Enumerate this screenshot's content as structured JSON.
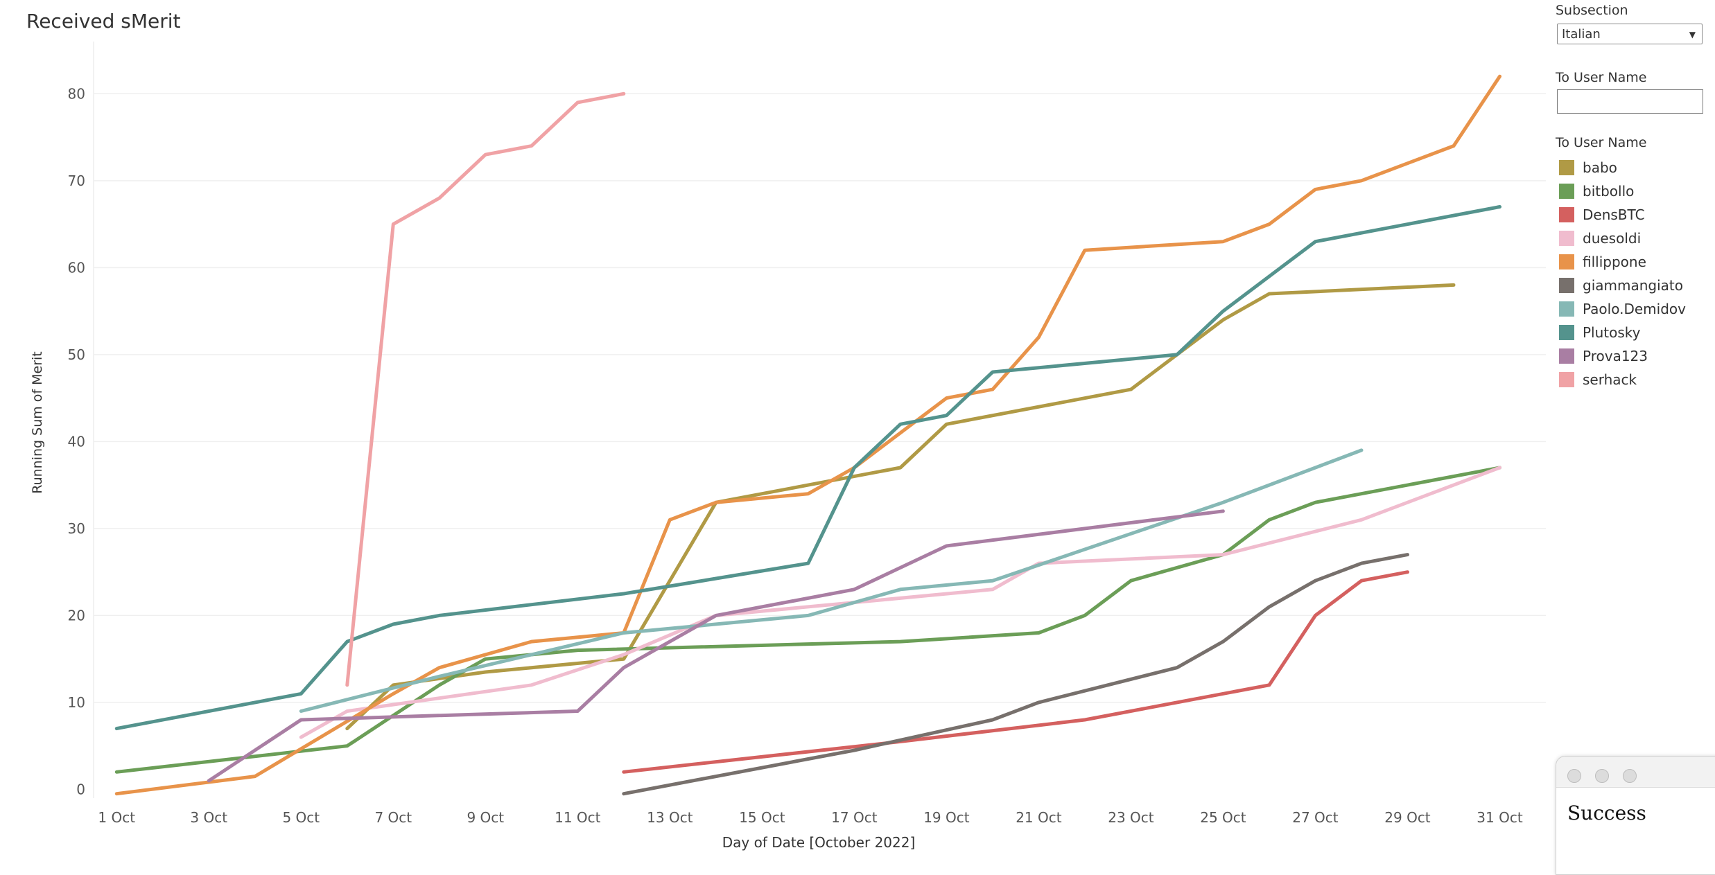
{
  "title": "Received sMerit",
  "filters": {
    "subsection_label": "Subsection",
    "subsection_value": "Italian",
    "to_user_label": "To User Name",
    "to_user_value": "",
    "legend_label": "To User Name"
  },
  "dialog": {
    "message": "Success"
  },
  "chart_data": {
    "type": "line",
    "xlabel": "Day of Date [October 2022]",
    "ylabel": "Running Sum of Merit",
    "xlim": [
      0.5,
      32
    ],
    "ylim": [
      -1,
      86
    ],
    "x_ticks": [
      "1 Oct",
      "3 Oct",
      "5 Oct",
      "7 Oct",
      "9 Oct",
      "11 Oct",
      "13 Oct",
      "15 Oct",
      "17 Oct",
      "19 Oct",
      "21 Oct",
      "23 Oct",
      "25 Oct",
      "27 Oct",
      "29 Oct",
      "31 Oct"
    ],
    "y_ticks": [
      0,
      10,
      20,
      30,
      40,
      50,
      60,
      70,
      80
    ],
    "grid": true,
    "legend_position": "right",
    "series": [
      {
        "name": "babo",
        "color": "#b09a45",
        "points": [
          [
            6,
            7
          ],
          [
            7,
            12
          ],
          [
            9,
            13.5
          ],
          [
            12,
            15
          ],
          [
            14,
            33
          ],
          [
            16,
            35
          ],
          [
            18,
            37
          ],
          [
            19,
            42
          ],
          [
            23,
            46
          ],
          [
            24,
            50
          ],
          [
            25,
            54
          ],
          [
            26,
            57
          ],
          [
            30,
            58
          ]
        ]
      },
      {
        "name": "bitbollo",
        "color": "#6b9e57",
        "points": [
          [
            1,
            2
          ],
          [
            6,
            5
          ],
          [
            8,
            12
          ],
          [
            9,
            15
          ],
          [
            11,
            16
          ],
          [
            18,
            17
          ],
          [
            21,
            18
          ],
          [
            22,
            20
          ],
          [
            23,
            24
          ],
          [
            25,
            27
          ],
          [
            26,
            31
          ],
          [
            27,
            33
          ],
          [
            31,
            37
          ]
        ]
      },
      {
        "name": "DensBTC",
        "color": "#d4605f",
        "points": [
          [
            12,
            2
          ],
          [
            18,
            5.5
          ],
          [
            22,
            8
          ],
          [
            26,
            12
          ],
          [
            27,
            20
          ],
          [
            28,
            24
          ],
          [
            29,
            25
          ]
        ]
      },
      {
        "name": "duesoldi",
        "color": "#f0bcce",
        "points": [
          [
            5,
            6
          ],
          [
            6,
            9
          ],
          [
            10,
            12
          ],
          [
            12,
            15.5
          ],
          [
            14,
            20
          ],
          [
            20,
            23
          ],
          [
            21,
            26
          ],
          [
            25,
            27
          ],
          [
            28,
            31
          ],
          [
            31,
            37
          ]
        ]
      },
      {
        "name": "fillippone",
        "color": "#e8934a",
        "points": [
          [
            1,
            -0.5
          ],
          [
            4,
            1.5
          ],
          [
            7,
            11
          ],
          [
            8,
            14
          ],
          [
            10,
            17
          ],
          [
            12,
            18
          ],
          [
            13,
            31
          ],
          [
            14,
            33
          ],
          [
            16,
            34
          ],
          [
            17,
            37
          ],
          [
            19,
            45
          ],
          [
            20,
            46
          ],
          [
            21,
            52
          ],
          [
            22,
            62
          ],
          [
            25,
            63
          ],
          [
            26,
            65
          ],
          [
            27,
            69
          ],
          [
            28,
            70
          ],
          [
            30,
            74
          ],
          [
            31,
            82
          ]
        ]
      },
      {
        "name": "giammangiato",
        "color": "#77706c",
        "points": [
          [
            12,
            -0.5
          ],
          [
            17,
            4.5
          ],
          [
            20,
            8
          ],
          [
            21,
            10
          ],
          [
            24,
            14
          ],
          [
            25,
            17
          ],
          [
            26,
            21
          ],
          [
            27,
            24
          ],
          [
            28,
            26
          ],
          [
            29,
            27
          ]
        ]
      },
      {
        "name": "Paolo.Demidov",
        "color": "#86b8b5",
        "points": [
          [
            5,
            9
          ],
          [
            8,
            13
          ],
          [
            12,
            18
          ],
          [
            16,
            20
          ],
          [
            18,
            23
          ],
          [
            20,
            24
          ],
          [
            25,
            33
          ],
          [
            26,
            35
          ],
          [
            28,
            39
          ]
        ]
      },
      {
        "name": "Plutosky",
        "color": "#54938d",
        "points": [
          [
            1,
            7
          ],
          [
            5,
            11
          ],
          [
            6,
            17
          ],
          [
            7,
            19
          ],
          [
            8,
            20
          ],
          [
            12,
            22.5
          ],
          [
            16,
            26
          ],
          [
            17,
            37
          ],
          [
            18,
            42
          ],
          [
            19,
            43
          ],
          [
            20,
            48
          ],
          [
            24,
            50
          ],
          [
            25,
            55
          ],
          [
            27,
            63
          ],
          [
            31,
            67
          ]
        ]
      },
      {
        "name": "Prova123",
        "color": "#a97ea3",
        "points": [
          [
            3,
            1
          ],
          [
            5,
            8
          ],
          [
            11,
            9
          ],
          [
            12,
            14
          ],
          [
            14,
            20
          ],
          [
            17,
            23
          ],
          [
            19,
            28
          ],
          [
            25,
            32
          ]
        ]
      },
      {
        "name": "serhack",
        "color": "#f0a2a5",
        "points": [
          [
            6,
            12
          ],
          [
            7,
            65
          ],
          [
            8,
            68
          ],
          [
            9,
            73
          ],
          [
            10,
            74
          ],
          [
            11,
            79
          ],
          [
            12,
            80
          ]
        ]
      }
    ]
  }
}
